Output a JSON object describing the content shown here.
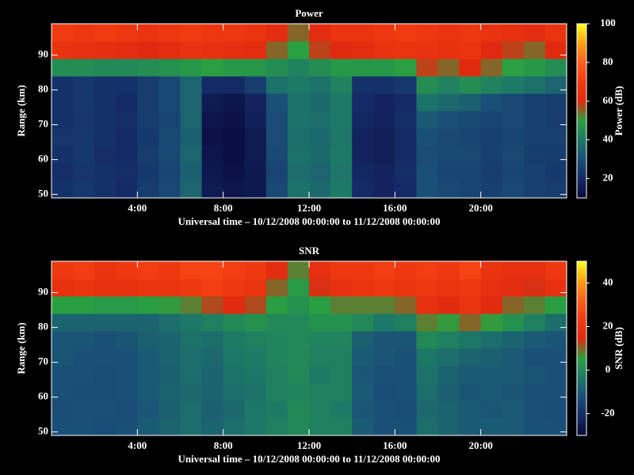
{
  "chart_data": [
    {
      "type": "heatmap",
      "title": "Power",
      "xlabel": "Universal time – 10/12/2008 00:00:00 to 11/12/2008 00:00:00",
      "ylabel": "Range (km)",
      "colorbar_label": "Power (dB)",
      "xbins": [
        0,
        1,
        2,
        3,
        4,
        5,
        6,
        7,
        8,
        9,
        10,
        11,
        12,
        13,
        14,
        15,
        16,
        17,
        18,
        19,
        20,
        21,
        22,
        23,
        24
      ],
      "ybins": [
        49,
        54,
        59,
        64,
        69,
        74,
        79,
        84,
        89,
        94,
        99
      ],
      "z": [
        [
          22,
          24,
          22,
          20,
          25,
          28,
          35,
          16,
          14,
          15,
          28,
          38,
          36,
          40,
          20,
          18,
          20,
          30,
          28,
          27,
          26,
          28,
          26,
          25
        ],
        [
          21,
          23,
          22,
          21,
          24,
          27,
          34,
          15,
          13,
          15,
          27,
          37,
          35,
          39,
          19,
          18,
          21,
          30,
          27,
          27,
          25,
          27,
          26,
          24
        ],
        [
          22,
          24,
          21,
          20,
          25,
          28,
          35,
          14,
          12,
          16,
          28,
          38,
          36,
          40,
          18,
          17,
          20,
          29,
          28,
          28,
          26,
          28,
          25,
          25
        ],
        [
          23,
          24,
          22,
          20,
          24,
          28,
          34,
          13,
          12,
          16,
          29,
          37,
          36,
          39,
          18,
          17,
          20,
          30,
          28,
          27,
          26,
          27,
          26,
          26
        ],
        [
          22,
          23,
          22,
          21,
          25,
          27,
          35,
          14,
          13,
          17,
          29,
          38,
          37,
          40,
          19,
          18,
          21,
          32,
          30,
          28,
          27,
          28,
          26,
          25
        ],
        [
          22,
          24,
          22,
          20,
          25,
          28,
          35,
          16,
          14,
          18,
          30,
          38,
          36,
          40,
          20,
          18,
          20,
          38,
          36,
          34,
          30,
          28,
          26,
          25
        ],
        [
          22,
          24,
          22,
          22,
          25,
          28,
          35,
          20,
          20,
          25,
          38,
          40,
          38,
          42,
          22,
          22,
          24,
          45,
          42,
          45,
          42,
          40,
          38,
          35
        ],
        [
          45,
          45,
          44,
          44,
          45,
          46,
          48,
          50,
          48,
          48,
          45,
          42,
          45,
          48,
          48,
          48,
          50,
          58,
          55,
          60,
          55,
          50,
          48,
          45
        ],
        [
          65,
          64,
          63,
          62,
          60,
          62,
          65,
          64,
          63,
          62,
          55,
          50,
          58,
          60,
          62,
          65,
          66,
          65,
          64,
          66,
          60,
          58,
          55,
          60
        ],
        [
          70,
          68,
          70,
          68,
          66,
          68,
          70,
          68,
          68,
          66,
          62,
          55,
          62,
          66,
          66,
          68,
          70,
          68,
          66,
          68,
          65,
          64,
          62,
          66
        ]
      ],
      "xlim": [
        0,
        24
      ],
      "ylim": [
        49,
        99
      ],
      "clim": [
        10,
        100
      ],
      "xticks": [
        {
          "value": 4,
          "label": "4:00"
        },
        {
          "value": 8,
          "label": "8:00"
        },
        {
          "value": 12,
          "label": "12:00"
        },
        {
          "value": 16,
          "label": "16:00"
        },
        {
          "value": 20,
          "label": "20:00"
        }
      ],
      "yticks": [
        50,
        60,
        70,
        80,
        90
      ],
      "cticks": [
        20,
        40,
        60,
        80,
        100
      ],
      "colormap": [
        "#08083a",
        "#142a66",
        "#1a4f78",
        "#1d7a66",
        "#2aa040",
        "#e02a10",
        "#f03a10",
        "#ff6020",
        "#ffa010",
        "#ffff20"
      ]
    },
    {
      "type": "heatmap",
      "title": "SNR",
      "xlabel": "Universal time – 10/12/2008 00:00:00 to 11/12/2008 00:00:00",
      "ylabel": "Range (km)",
      "colorbar_label": "SNR (dB)",
      "xbins": [
        0,
        1,
        2,
        3,
        4,
        5,
        6,
        7,
        8,
        9,
        10,
        11,
        12,
        13,
        14,
        15,
        16,
        17,
        18,
        19,
        20,
        21,
        22,
        23,
        24
      ],
      "ybins": [
        49,
        54,
        59,
        64,
        69,
        74,
        79,
        84,
        89,
        94,
        99
      ],
      "z": [
        [
          -12,
          -12,
          -13,
          -12,
          -10,
          -8,
          -6,
          -8,
          -6,
          -4,
          -2,
          0,
          -2,
          -2,
          -10,
          -12,
          -12,
          -6,
          -8,
          -10,
          -10,
          -10,
          -12,
          -12
        ],
        [
          -13,
          -12,
          -12,
          -13,
          -11,
          -9,
          -6,
          -9,
          -7,
          -4,
          -3,
          0,
          -2,
          -3,
          -11,
          -12,
          -13,
          -7,
          -8,
          -10,
          -11,
          -10,
          -12,
          -13
        ],
        [
          -12,
          -13,
          -13,
          -12,
          -10,
          -8,
          -7,
          -8,
          -6,
          -5,
          -2,
          -1,
          -2,
          -2,
          -10,
          -13,
          -12,
          -6,
          -9,
          -11,
          -10,
          -11,
          -12,
          -12
        ],
        [
          -12,
          -12,
          -13,
          -12,
          -10,
          -9,
          -6,
          -8,
          -5,
          -4,
          -2,
          0,
          -3,
          -2,
          -11,
          -12,
          -12,
          -5,
          -8,
          -10,
          -10,
          -10,
          -11,
          -12
        ],
        [
          -11,
          -12,
          -12,
          -12,
          -10,
          -8,
          -6,
          -7,
          -4,
          -3,
          -1,
          0,
          -2,
          -2,
          -10,
          -11,
          -12,
          -4,
          -6,
          -8,
          -9,
          -10,
          -12,
          -12
        ],
        [
          -11,
          -11,
          -12,
          -11,
          -9,
          -8,
          -5,
          -6,
          -3,
          -2,
          -1,
          0,
          -1,
          -1,
          -9,
          -11,
          -11,
          0,
          -2,
          -4,
          -6,
          -8,
          -10,
          -11
        ],
        [
          -8,
          -8,
          -8,
          -8,
          -8,
          -6,
          -4,
          -2,
          0,
          2,
          0,
          0,
          2,
          2,
          0,
          -4,
          -2,
          8,
          6,
          10,
          6,
          2,
          -2,
          -6
        ],
        [
          5,
          5,
          4,
          4,
          5,
          6,
          8,
          12,
          15,
          12,
          5,
          2,
          5,
          8,
          8,
          8,
          10,
          18,
          15,
          20,
          15,
          10,
          8,
          5
        ],
        [
          18,
          20,
          18,
          18,
          20,
          20,
          22,
          24,
          22,
          20,
          10,
          4,
          14,
          18,
          20,
          22,
          20,
          22,
          20,
          22,
          18,
          16,
          14,
          18
        ],
        [
          22,
          24,
          20,
          22,
          24,
          22,
          26,
          26,
          24,
          22,
          16,
          8,
          18,
          22,
          22,
          24,
          22,
          24,
          22,
          26,
          20,
          18,
          18,
          22
        ]
      ],
      "xlim": [
        0,
        24
      ],
      "ylim": [
        49,
        99
      ],
      "clim": [
        -30,
        50
      ],
      "xticks": [
        {
          "value": 4,
          "label": "4:00"
        },
        {
          "value": 8,
          "label": "8:00"
        },
        {
          "value": 12,
          "label": "12:00"
        },
        {
          "value": 16,
          "label": "16:00"
        },
        {
          "value": 20,
          "label": "20:00"
        }
      ],
      "yticks": [
        50,
        60,
        70,
        80,
        90
      ],
      "cticks": [
        -20,
        0,
        20,
        40
      ],
      "colormap": [
        "#08083a",
        "#142a66",
        "#1a4f78",
        "#1d7a66",
        "#2aa040",
        "#e02a10",
        "#f03a10",
        "#ff6020",
        "#ffa010",
        "#ffff20"
      ]
    }
  ]
}
